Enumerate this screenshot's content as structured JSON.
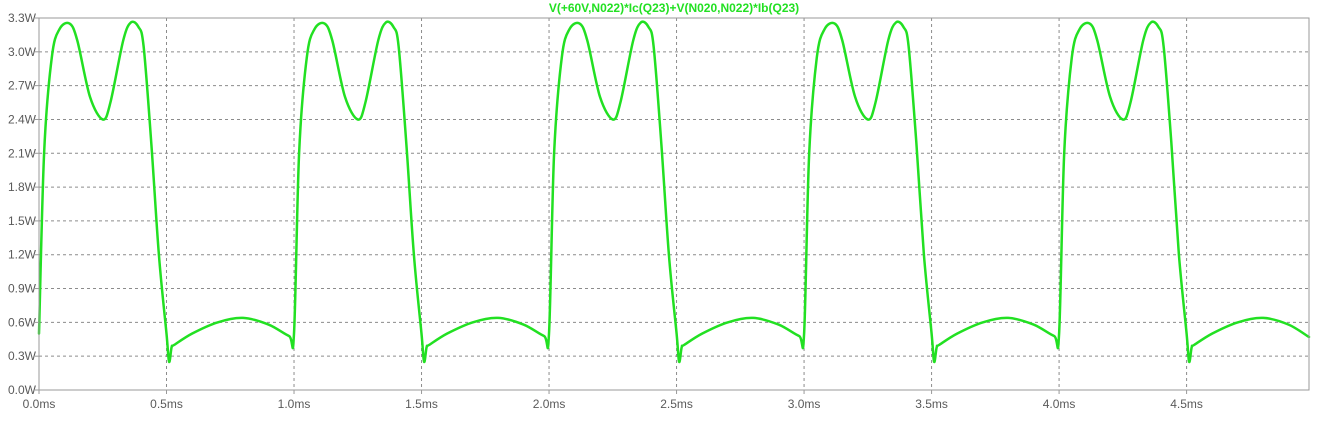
{
  "chart_data": {
    "type": "line",
    "title": "V(+60V,N022)*Ic(Q23)+V(N020,N022)*Ib(Q23)",
    "xlabel": "",
    "ylabel": "",
    "xlim": [
      0,
      4.98
    ],
    "ylim": [
      0,
      3.3
    ],
    "grid": true,
    "x_ticks": [
      0,
      0.5,
      1.0,
      1.5,
      2.0,
      2.5,
      3.0,
      3.5,
      4.0,
      4.5
    ],
    "x_tick_labels": [
      "0.0ms",
      "0.5ms",
      "1.0ms",
      "1.5ms",
      "2.0ms",
      "2.5ms",
      "3.0ms",
      "3.5ms",
      "4.0ms",
      "4.5ms"
    ],
    "y_ticks": [
      0,
      0.3,
      0.6,
      0.9,
      1.2,
      1.5,
      1.8,
      2.1,
      2.4,
      2.7,
      3.0,
      3.3
    ],
    "y_tick_labels": [
      "0.0W",
      "0.3W",
      "0.6W",
      "0.9W",
      "1.2W",
      "1.5W",
      "1.8W",
      "2.1W",
      "2.4W",
      "2.7W",
      "3.0W",
      "3.3W"
    ],
    "series": [
      {
        "color": "#22e022",
        "x_unit": "ms",
        "y_unit": "W",
        "x": [
          0,
          0.02,
          0.05,
          0.08,
          0.12,
          0.15,
          0.2,
          0.25,
          0.28,
          0.33,
          0.36,
          0.39,
          0.41,
          0.44,
          0.47,
          0.5,
          0.51,
          0.52,
          0.53,
          0.6,
          0.7,
          0.8,
          0.9,
          0.98,
          1.0,
          1.02,
          1.05,
          1.08,
          1.12,
          1.15,
          1.2,
          1.25,
          1.28,
          1.33,
          1.36,
          1.39,
          1.41,
          1.44,
          1.47,
          1.5,
          1.51,
          1.52,
          1.53,
          1.6,
          1.7,
          1.8,
          1.9,
          1.98,
          2.0,
          2.02,
          2.05,
          2.08,
          2.12,
          2.15,
          2.2,
          2.25,
          2.28,
          2.33,
          2.36,
          2.39,
          2.41,
          2.44,
          2.47,
          2.5,
          2.51,
          2.52,
          2.53,
          2.6,
          2.7,
          2.8,
          2.9,
          2.98,
          3.0,
          3.02,
          3.05,
          3.08,
          3.12,
          3.15,
          3.2,
          3.25,
          3.28,
          3.33,
          3.36,
          3.39,
          3.41,
          3.44,
          3.47,
          3.5,
          3.51,
          3.52,
          3.53,
          3.6,
          3.7,
          3.8,
          3.9,
          3.98,
          4.0,
          4.02,
          4.05,
          4.08,
          4.12,
          4.15,
          4.2,
          4.25,
          4.28,
          4.33,
          4.36,
          4.39,
          4.41,
          4.44,
          4.47,
          4.5,
          4.51,
          4.52,
          4.53,
          4.6,
          4.7,
          4.8,
          4.9,
          4.98
        ],
        "y": [
          0.5,
          2.1,
          2.95,
          3.2,
          3.25,
          3.1,
          2.6,
          2.4,
          2.55,
          3.1,
          3.26,
          3.22,
          3.05,
          2.2,
          1.2,
          0.5,
          0.25,
          0.38,
          0.4,
          0.5,
          0.6,
          0.64,
          0.58,
          0.48,
          0.5,
          2.1,
          2.95,
          3.2,
          3.25,
          3.1,
          2.6,
          2.4,
          2.55,
          3.1,
          3.26,
          3.22,
          3.05,
          2.2,
          1.2,
          0.5,
          0.25,
          0.38,
          0.4,
          0.5,
          0.6,
          0.64,
          0.58,
          0.48,
          0.5,
          2.1,
          2.95,
          3.2,
          3.25,
          3.1,
          2.6,
          2.4,
          2.55,
          3.1,
          3.26,
          3.22,
          3.05,
          2.2,
          1.2,
          0.5,
          0.25,
          0.38,
          0.4,
          0.5,
          0.6,
          0.64,
          0.58,
          0.48,
          0.5,
          2.1,
          2.95,
          3.2,
          3.25,
          3.1,
          2.6,
          2.4,
          2.55,
          3.1,
          3.26,
          3.22,
          3.05,
          2.2,
          1.2,
          0.5,
          0.25,
          0.38,
          0.4,
          0.5,
          0.6,
          0.64,
          0.58,
          0.48,
          0.5,
          2.1,
          2.95,
          3.2,
          3.25,
          3.1,
          2.6,
          2.4,
          2.55,
          3.1,
          3.26,
          3.22,
          3.05,
          2.2,
          1.2,
          0.5,
          0.25,
          0.38,
          0.4,
          0.5,
          0.6,
          0.64,
          0.58,
          0.47
        ]
      }
    ]
  }
}
